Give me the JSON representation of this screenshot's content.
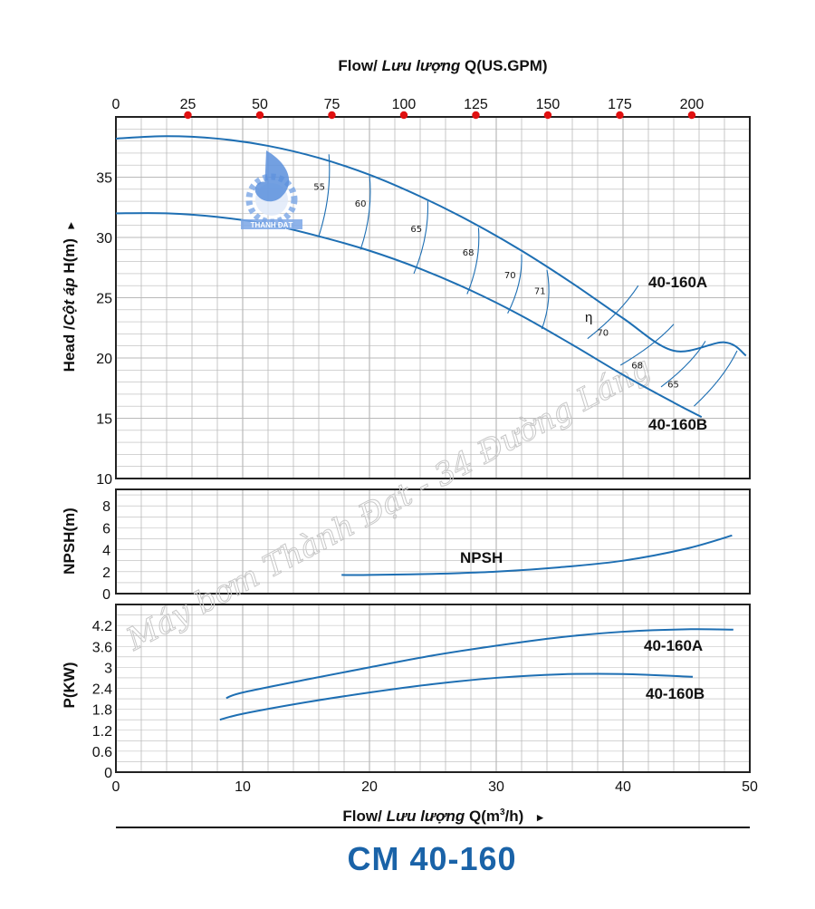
{
  "logo": {
    "text": "THANH ĐẠT",
    "colors": {
      "drop": "#5b8fdc",
      "gear": "#7aa6e6"
    }
  },
  "watermark": "Máy bơm Thành Đạt - 34 Đường Láng",
  "title": "CM 40-160",
  "colors": {
    "curve": "#1e6fb3",
    "grid": "#b9b9b9",
    "frame": "#222222",
    "dot": "#e01010",
    "title": "#1a63a8"
  },
  "axes": {
    "top_title": "Flow/ Lưu lượng Q(US.GPM)",
    "top_title_parts": [
      "Flow/ ",
      "Lưu lượng",
      " Q(US.GPM)"
    ],
    "bottom_title_parts": [
      "Flow/ ",
      "Lưu lượng",
      " Q(m",
      "3",
      "/h)"
    ],
    "head_title": "Head /Cột áp H(m)",
    "head_title_parts": [
      "Head /",
      "Cột áp",
      " H(m)"
    ],
    "npsh_title": "NPSH(m)",
    "power_title": "P(KW)",
    "arrow_glyph": "▸",
    "top_ticks": [
      "0",
      "25",
      "50",
      "75",
      "100",
      "125",
      "150",
      "175",
      "200"
    ],
    "bottom_ticks": [
      "0",
      "10",
      "20",
      "30",
      "40",
      "50"
    ],
    "head_ticks": [
      "10",
      "15",
      "20",
      "25",
      "30",
      "35"
    ],
    "npsh_ticks": [
      "0",
      "2",
      "4",
      "6",
      "8"
    ],
    "power_ticks": [
      "0",
      "0.6",
      "1.2",
      "1.8",
      "2.4",
      "3",
      "3.6",
      "4.2"
    ]
  },
  "chart_data": [
    {
      "type": "line",
      "panel": "head",
      "xlabel": "Flow/ Lưu lượng Q(m3/h)",
      "x2label": "Flow/ Lưu lượng Q(US.GPM)",
      "ylabel": "Head /Cột áp H(m)",
      "xlim": [
        0,
        50
      ],
      "ylim": [
        10,
        40
      ],
      "grid": true,
      "series": [
        {
          "name": "40-160A",
          "x": [
            0,
            4,
            8,
            12,
            16,
            20,
            24,
            28,
            32,
            36,
            40,
            44,
            48,
            49.7
          ],
          "y": [
            38.2,
            38.4,
            38.2,
            37.6,
            36.6,
            35.2,
            33.4,
            31.3,
            28.9,
            26.2,
            23.3,
            20.6,
            21.3,
            20.2
          ]
        },
        {
          "name": "40-160B",
          "x": [
            0,
            4,
            8,
            12,
            16,
            20,
            24,
            28,
            32,
            36,
            40,
            44,
            46.2
          ],
          "y": [
            32.0,
            32.0,
            31.7,
            31.1,
            30.1,
            28.9,
            27.4,
            25.6,
            23.5,
            21.1,
            18.6,
            16.3,
            15.1
          ]
        }
      ],
      "efficiency": {
        "label": "η",
        "contours": [
          {
            "label": "55",
            "top": [
              16.8,
              36.9
            ],
            "bottom": [
              16.0,
              30.1
            ]
          },
          {
            "label": "60",
            "top": [
              20.0,
              35.2
            ],
            "bottom": [
              19.3,
              29.0
            ]
          },
          {
            "label": "65",
            "top": [
              24.6,
              33.0
            ],
            "bottom": [
              23.5,
              27.0
            ]
          },
          {
            "label": "68",
            "top": [
              28.6,
              30.8
            ],
            "bottom": [
              27.7,
              25.3
            ]
          },
          {
            "label": "70",
            "top": [
              32.0,
              28.6
            ],
            "bottom": [
              30.9,
              23.7
            ]
          },
          {
            "label": "71",
            "top": [
              34.0,
              27.3
            ],
            "bottom": [
              33.6,
              22.4
            ]
          }
        ],
        "right_contours": [
          {
            "label": "70",
            "top": [
              41.2,
              26.0
            ],
            "bottom": [
              37.2,
              21.6
            ]
          },
          {
            "label": "68",
            "top": [
              44.0,
              22.8
            ],
            "bottom": [
              39.8,
              19.4
            ]
          },
          {
            "label": "65",
            "top": [
              46.5,
              21.4
            ],
            "bottom": [
              43.0,
              17.6
            ]
          },
          {
            "label": "",
            "top": [
              49.0,
              20.6
            ],
            "bottom": [
              45.6,
              16.0
            ]
          }
        ]
      }
    },
    {
      "type": "line",
      "panel": "npsh",
      "xlabel": "Flow/ Lưu lượng Q(m3/h)",
      "ylabel": "NPSH(m)",
      "xlim": [
        0,
        50
      ],
      "ylim": [
        0,
        9.5
      ],
      "grid": true,
      "series": [
        {
          "name": "NPSH",
          "x": [
            17.8,
            20,
            25,
            30,
            35,
            40,
            45,
            48.6
          ],
          "y": [
            1.7,
            1.7,
            1.8,
            2.0,
            2.4,
            3.0,
            4.1,
            5.3
          ]
        }
      ]
    },
    {
      "type": "line",
      "panel": "power",
      "xlabel": "Flow/ Lưu lượng Q(m3/h)",
      "ylabel": "P(KW)",
      "xlim": [
        0,
        50
      ],
      "ylim": [
        0,
        4.8
      ],
      "grid": true,
      "series": [
        {
          "name": "40-160A",
          "x": [
            8.7,
            10,
            15,
            20,
            25,
            30,
            35,
            40,
            45,
            48.7
          ],
          "y": [
            2.12,
            2.28,
            2.65,
            3.0,
            3.34,
            3.62,
            3.86,
            4.02,
            4.09,
            4.08
          ]
        },
        {
          "name": "40-160B",
          "x": [
            8.2,
            10,
            15,
            20,
            25,
            30,
            35,
            40,
            45.5
          ],
          "y": [
            1.5,
            1.67,
            2.0,
            2.28,
            2.52,
            2.7,
            2.8,
            2.81,
            2.73
          ]
        }
      ]
    }
  ]
}
